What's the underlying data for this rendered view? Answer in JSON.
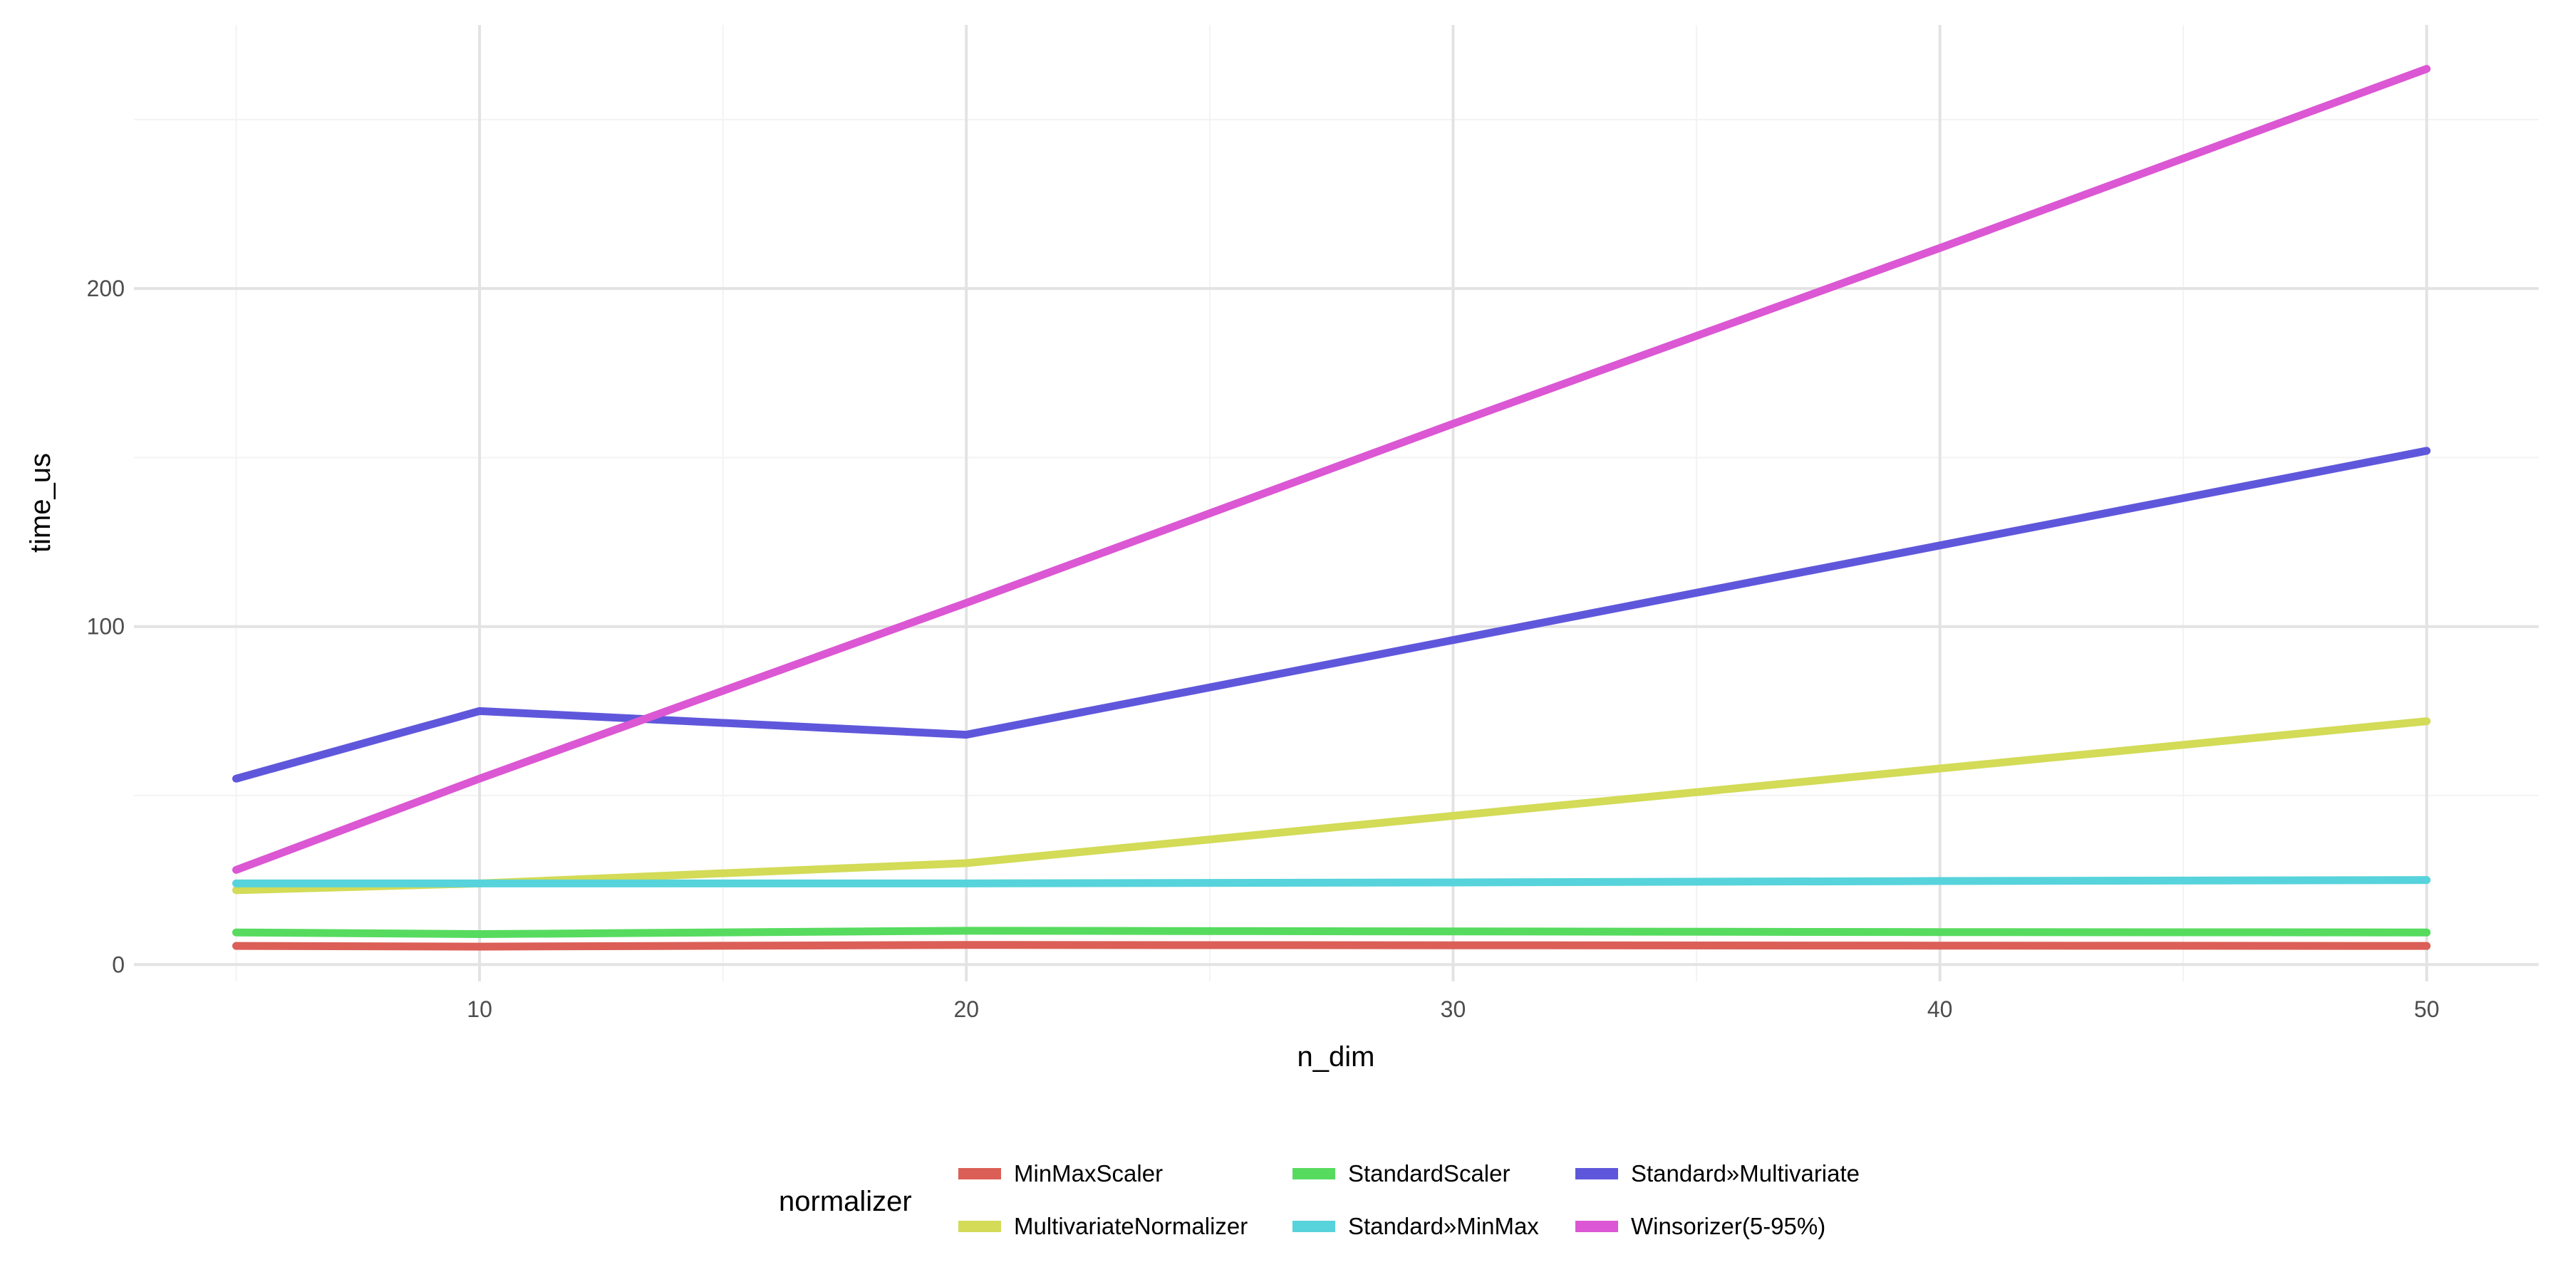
{
  "chart_data": {
    "type": "line",
    "title": "",
    "xlabel": "n_dim",
    "ylabel": "time_us",
    "xlim": [
      2.9,
      52.3
    ],
    "ylim": [
      -5,
      278
    ],
    "x_ticks": [
      10,
      20,
      30,
      40,
      50
    ],
    "y_ticks": [
      0,
      100,
      200
    ],
    "grid": true,
    "legend_title": "normalizer",
    "legend_position": "bottom",
    "x": [
      5,
      10,
      20,
      30,
      40,
      50
    ],
    "series": [
      {
        "name": "MinMaxScaler",
        "color": "#DB5F57",
        "values": [
          5.5,
          5.3,
          5.8,
          5.7,
          5.6,
          5.5
        ]
      },
      {
        "name": "MultivariateNormalizer",
        "color": "#D3DB57",
        "values": [
          22,
          24,
          30,
          44,
          58,
          72
        ]
      },
      {
        "name": "StandardScaler",
        "color": "#57DB5F",
        "values": [
          9.5,
          9,
          10,
          9.8,
          9.6,
          9.5
        ]
      },
      {
        "name": "Standard»MinMax",
        "color": "#57D3DB",
        "values": [
          24,
          24,
          24,
          24.3,
          24.7,
          25
        ]
      },
      {
        "name": "Standard»Multivariate",
        "color": "#5F57DB",
        "values": [
          55,
          75,
          68,
          96,
          124,
          152
        ]
      },
      {
        "name": "Winsorizer(5-95%)",
        "color": "#DB57D3",
        "values": [
          28,
          55,
          107,
          160,
          212,
          265
        ]
      }
    ]
  }
}
